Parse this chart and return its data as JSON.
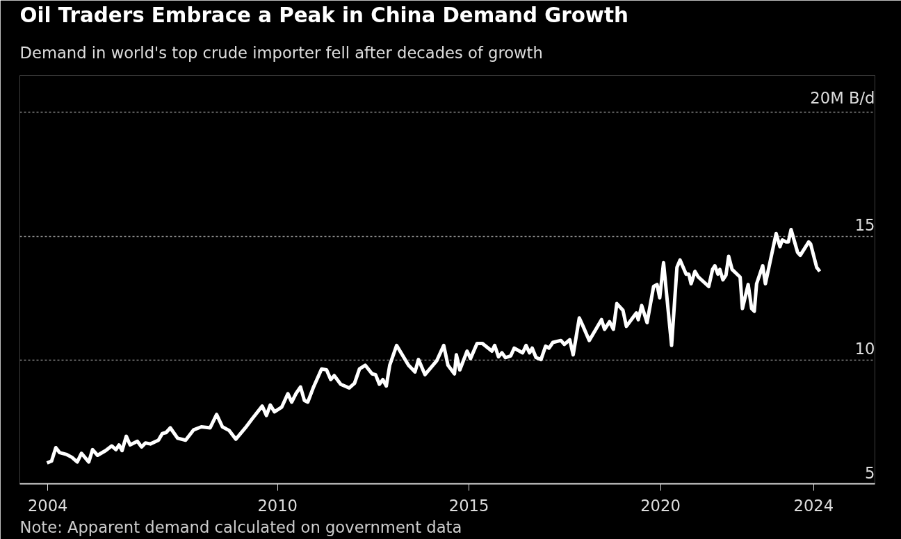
{
  "chart_data": {
    "type": "line",
    "title": "Oil Traders Embrace a Peak in China Demand Growth",
    "subtitle": "Demand in world's top crude importer fell after decades of growth",
    "annotations": [
      "Note: Apparent demand calculated on government data"
    ],
    "xlim": [
      2003.27,
      2025.6
    ],
    "xticks": [
      2004,
      2010,
      2015,
      2020,
      2024
    ],
    "ylim": [
      5,
      21.5
    ],
    "yticks": [
      5,
      10,
      15,
      {
        "value": 20,
        "label": "20M B/d"
      }
    ],
    "grid": "y",
    "marker": "none",
    "line_style": "solid",
    "series": [
      {
        "color": "#ffffff",
        "x": [
          2003.98,
          2004.1,
          2004.21,
          2004.31,
          2004.48,
          2004.63,
          2004.77,
          2004.88,
          2005.07,
          2005.17,
          2005.3,
          2005.51,
          2005.67,
          2005.78,
          2005.86,
          2005.94,
          2006.05,
          2006.15,
          2006.34,
          2006.45,
          2006.55,
          2006.68,
          2006.89,
          2006.99,
          2007.09,
          2007.2,
          2007.39,
          2007.6,
          2007.81,
          2008.01,
          2008.24,
          2008.41,
          2008.56,
          2008.74,
          2008.91,
          2009.16,
          2009.33,
          2009.6,
          2009.71,
          2009.81,
          2009.92,
          2010.11,
          2010.27,
          2010.37,
          2010.48,
          2010.6,
          2010.7,
          2010.79,
          2010.93,
          2011.15,
          2011.28,
          2011.39,
          2011.48,
          2011.65,
          2011.87,
          2012.01,
          2012.14,
          2012.29,
          2012.47,
          2012.56,
          2012.66,
          2012.75,
          2012.84,
          2012.93,
          2013.11,
          2013.42,
          2013.59,
          2013.68,
          2013.85,
          2014.16,
          2014.34,
          2014.45,
          2014.62,
          2014.67,
          2014.76,
          2014.95,
          2015.04,
          2015.21,
          2015.35,
          2015.6,
          2015.67,
          2015.77,
          2015.86,
          2015.95,
          2016.09,
          2016.18,
          2016.4,
          2016.49,
          2016.58,
          2016.65,
          2016.75,
          2016.88,
          2017.0,
          2017.09,
          2017.19,
          2017.4,
          2017.49,
          2017.63,
          2017.72,
          2017.88,
          2017.98,
          2018.14,
          2018.46,
          2018.54,
          2018.67,
          2018.77,
          2018.86,
          2019.02,
          2019.11,
          2019.37,
          2019.42,
          2019.51,
          2019.65,
          2019.82,
          2019.91,
          2019.98,
          2020.08,
          2020.29,
          2020.43,
          2020.51,
          2020.67,
          2020.74,
          2020.8,
          2020.9,
          2020.99,
          2021.26,
          2021.36,
          2021.42,
          2021.5,
          2021.55,
          2021.63,
          2021.71,
          2021.78,
          2021.87,
          2022.08,
          2022.14,
          2022.29,
          2022.38,
          2022.45,
          2022.51,
          2022.67,
          2022.74,
          2023.02,
          2023.12,
          2023.18,
          2023.28,
          2023.34,
          2023.41,
          2023.58,
          2023.65,
          2023.87,
          2023.92,
          2024.08,
          2024.16
        ],
        "values": [
          5.84,
          5.92,
          6.46,
          6.26,
          6.19,
          6.07,
          5.88,
          6.23,
          5.88,
          6.38,
          6.15,
          6.34,
          6.53,
          6.38,
          6.57,
          6.34,
          6.92,
          6.57,
          6.72,
          6.49,
          6.65,
          6.61,
          6.76,
          7.03,
          7.07,
          7.26,
          6.84,
          6.76,
          7.18,
          7.3,
          7.26,
          7.8,
          7.3,
          7.15,
          6.8,
          7.26,
          7.61,
          8.14,
          7.76,
          8.18,
          7.91,
          8.1,
          8.64,
          8.3,
          8.64,
          8.91,
          8.37,
          8.3,
          8.87,
          9.64,
          9.6,
          9.21,
          9.37,
          9.02,
          8.87,
          9.06,
          9.64,
          9.79,
          9.44,
          9.41,
          9.02,
          9.21,
          8.95,
          9.79,
          10.59,
          9.79,
          9.52,
          10.02,
          9.41,
          9.98,
          10.59,
          9.79,
          9.44,
          10.21,
          9.6,
          10.36,
          10.06,
          10.67,
          10.67,
          10.36,
          10.59,
          10.13,
          10.29,
          10.1,
          10.17,
          10.48,
          10.29,
          10.59,
          10.29,
          10.48,
          10.1,
          10.02,
          10.56,
          10.48,
          10.71,
          10.79,
          10.63,
          10.82,
          10.21,
          11.7,
          11.36,
          10.79,
          11.63,
          11.24,
          11.55,
          11.24,
          12.28,
          12.01,
          11.36,
          11.9,
          11.63,
          12.2,
          11.51,
          12.97,
          13.05,
          12.51,
          13.93,
          10.59,
          13.74,
          14.04,
          13.47,
          13.47,
          13.08,
          13.58,
          13.35,
          12.97,
          13.66,
          13.81,
          13.47,
          13.66,
          13.24,
          13.43,
          14.19,
          13.66,
          13.35,
          12.08,
          13.05,
          12.08,
          11.97,
          13.08,
          13.81,
          13.08,
          15.11,
          14.58,
          14.85,
          14.77,
          14.77,
          15.27,
          14.35,
          14.23,
          14.77,
          14.69,
          13.74,
          13.58
        ]
      }
    ]
  }
}
